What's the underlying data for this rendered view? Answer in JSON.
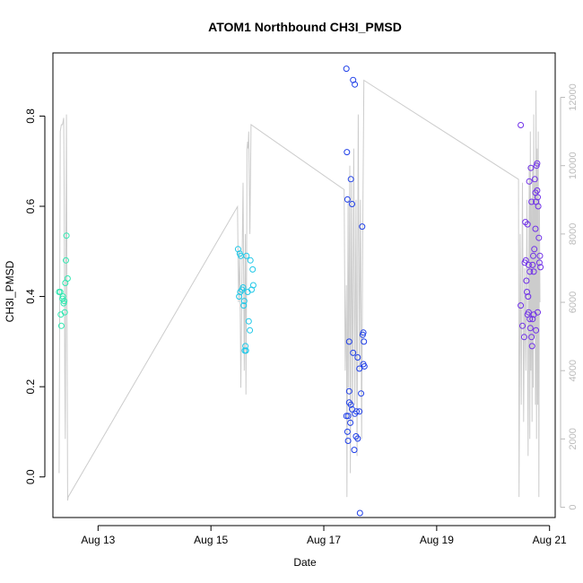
{
  "chart_data": {
    "type": "scatter",
    "title": "ATOM1 Northbound CH3I_PMSD",
    "xlabel": "Date",
    "ylabel": "CH3I_PMSD",
    "xlim": [
      12.2,
      21.1
    ],
    "ylim": [
      -0.09,
      0.94
    ],
    "x_ticks": [
      {
        "value": 13,
        "label": "Aug 13"
      },
      {
        "value": 15,
        "label": "Aug 15"
      },
      {
        "value": 17,
        "label": "Aug 17"
      },
      {
        "value": 19,
        "label": "Aug 19"
      },
      {
        "value": 21,
        "label": "Aug 21"
      }
    ],
    "y_ticks": [
      {
        "value": 0.0,
        "label": "0.0"
      },
      {
        "value": 0.2,
        "label": "0.2"
      },
      {
        "value": 0.4,
        "label": "0.4"
      },
      {
        "value": 0.6,
        "label": "0.6"
      },
      {
        "value": 0.8,
        "label": "0.8"
      }
    ],
    "y2lim": [
      -300,
      13300
    ],
    "y2_ticks": [
      {
        "value": 0,
        "label": "0"
      },
      {
        "value": 2000,
        "label": "2000"
      },
      {
        "value": 4000,
        "label": "4000"
      },
      {
        "value": 6000,
        "label": "6000"
      },
      {
        "value": 8000,
        "label": "8000"
      },
      {
        "value": 10000,
        "label": "10000"
      },
      {
        "value": 12000,
        "label": "12000"
      }
    ],
    "grid": false,
    "series": [
      {
        "color": "#2ee8b0",
        "points": [
          [
            12.31,
            0.41
          ],
          [
            12.33,
            0.41
          ],
          [
            12.34,
            0.36
          ],
          [
            12.35,
            0.335
          ],
          [
            12.37,
            0.395
          ],
          [
            12.38,
            0.4
          ],
          [
            12.39,
            0.385
          ],
          [
            12.4,
            0.39
          ],
          [
            12.41,
            0.365
          ],
          [
            12.42,
            0.43
          ],
          [
            12.43,
            0.48
          ],
          [
            12.44,
            0.535
          ],
          [
            12.46,
            0.44
          ]
        ]
      },
      {
        "color": "#1fc8e8",
        "points": [
          [
            15.48,
            0.505
          ],
          [
            15.5,
            0.4
          ],
          [
            15.51,
            0.495
          ],
          [
            15.52,
            0.41
          ],
          [
            15.53,
            0.49
          ],
          [
            15.55,
            0.415
          ],
          [
            15.57,
            0.42
          ],
          [
            15.58,
            0.38
          ],
          [
            15.59,
            0.39
          ],
          [
            15.6,
            0.28
          ],
          [
            15.61,
            0.29
          ],
          [
            15.62,
            0.28
          ],
          [
            15.63,
            0.49
          ],
          [
            15.65,
            0.41
          ],
          [
            15.67,
            0.345
          ],
          [
            15.69,
            0.325
          ],
          [
            15.7,
            0.48
          ],
          [
            15.72,
            0.415
          ],
          [
            15.74,
            0.46
          ],
          [
            15.75,
            0.425
          ]
        ]
      },
      {
        "color": "#2040e8",
        "points": [
          [
            17.4,
            0.905
          ],
          [
            17.52,
            0.88
          ],
          [
            17.55,
            0.87
          ],
          [
            17.41,
            0.72
          ],
          [
            17.42,
            0.615
          ],
          [
            17.48,
            0.66
          ],
          [
            17.5,
            0.605
          ],
          [
            17.68,
            0.555
          ],
          [
            17.45,
            0.3
          ],
          [
            17.69,
            0.315
          ],
          [
            17.7,
            0.32
          ],
          [
            17.71,
            0.3
          ],
          [
            17.52,
            0.275
          ],
          [
            17.6,
            0.265
          ],
          [
            17.7,
            0.25
          ],
          [
            17.72,
            0.245
          ],
          [
            17.63,
            0.24
          ],
          [
            17.45,
            0.19
          ],
          [
            17.66,
            0.185
          ],
          [
            17.45,
            0.165
          ],
          [
            17.48,
            0.16
          ],
          [
            17.4,
            0.135
          ],
          [
            17.43,
            0.135
          ],
          [
            17.5,
            0.15
          ],
          [
            17.55,
            0.14
          ],
          [
            17.58,
            0.145
          ],
          [
            17.63,
            0.145
          ],
          [
            17.47,
            0.12
          ],
          [
            17.42,
            0.1
          ],
          [
            17.57,
            0.09
          ],
          [
            17.6,
            0.085
          ],
          [
            17.43,
            0.08
          ],
          [
            17.54,
            0.06
          ],
          [
            17.64,
            -0.08
          ]
        ]
      },
      {
        "color": "#7030e8",
        "points": [
          [
            20.49,
            0.78
          ],
          [
            20.49,
            0.38
          ],
          [
            20.52,
            0.335
          ],
          [
            20.55,
            0.31
          ],
          [
            20.56,
            0.475
          ],
          [
            20.57,
            0.565
          ],
          [
            20.58,
            0.48
          ],
          [
            20.59,
            0.435
          ],
          [
            20.6,
            0.41
          ],
          [
            20.61,
            0.56
          ],
          [
            20.61,
            0.36
          ],
          [
            20.62,
            0.4
          ],
          [
            20.63,
            0.47
          ],
          [
            20.63,
            0.365
          ],
          [
            20.64,
            0.655
          ],
          [
            20.65,
            0.35
          ],
          [
            20.65,
            0.455
          ],
          [
            20.66,
            0.33
          ],
          [
            20.67,
            0.685
          ],
          [
            20.68,
            0.61
          ],
          [
            20.68,
            0.31
          ],
          [
            20.69,
            0.29
          ],
          [
            20.7,
            0.47
          ],
          [
            20.7,
            0.35
          ],
          [
            20.71,
            0.49
          ],
          [
            20.72,
            0.455
          ],
          [
            20.72,
            0.36
          ],
          [
            20.73,
            0.505
          ],
          [
            20.74,
            0.66
          ],
          [
            20.75,
            0.63
          ],
          [
            20.75,
            0.55
          ],
          [
            20.76,
            0.61
          ],
          [
            20.76,
            0.325
          ],
          [
            20.77,
            0.69
          ],
          [
            20.78,
            0.695
          ],
          [
            20.78,
            0.635
          ],
          [
            20.79,
            0.62
          ],
          [
            20.79,
            0.365
          ],
          [
            20.8,
            0.6
          ],
          [
            20.81,
            0.53
          ],
          [
            20.82,
            0.475
          ],
          [
            20.83,
            0.49
          ],
          [
            20.84,
            0.465
          ]
        ]
      }
    ],
    "right_axis_line": {
      "color": "#cccccc",
      "points": [
        [
          12.31,
          1000
        ],
        [
          12.33,
          11000
        ],
        [
          12.35,
          11200
        ],
        [
          12.37,
          11200
        ],
        [
          12.39,
          11400
        ],
        [
          12.4,
          9000
        ],
        [
          12.41,
          4000
        ],
        [
          12.42,
          2000
        ],
        [
          12.43,
          8000
        ],
        [
          12.44,
          11500
        ],
        [
          12.45,
          6000
        ],
        [
          12.46,
          200
        ],
        [
          12.47,
          300
        ],
        [
          15.47,
          8800
        ],
        [
          15.49,
          6000
        ],
        [
          15.51,
          7500
        ],
        [
          15.53,
          3500
        ],
        [
          15.55,
          7000
        ],
        [
          15.57,
          9500
        ],
        [
          15.59,
          4000
        ],
        [
          15.61,
          8000
        ],
        [
          15.62,
          3300
        ],
        [
          15.63,
          6000
        ],
        [
          15.64,
          10500
        ],
        [
          15.65,
          10700
        ],
        [
          15.66,
          10500
        ],
        [
          15.67,
          11000
        ],
        [
          15.69,
          8000
        ],
        [
          15.71,
          11200
        ],
        [
          17.36,
          9300
        ],
        [
          17.38,
          4000
        ],
        [
          17.4,
          6500
        ],
        [
          17.41,
          300
        ],
        [
          17.43,
          9000
        ],
        [
          17.44,
          3500
        ],
        [
          17.46,
          10000
        ],
        [
          17.47,
          1000
        ],
        [
          17.49,
          9500
        ],
        [
          17.51,
          2500
        ],
        [
          17.53,
          10500
        ],
        [
          17.55,
          3000
        ],
        [
          17.57,
          9000
        ],
        [
          17.59,
          1500
        ],
        [
          17.61,
          11500
        ],
        [
          17.63,
          4000
        ],
        [
          17.65,
          9000
        ],
        [
          17.67,
          2000
        ],
        [
          17.69,
          8000
        ],
        [
          17.71,
          12500
        ],
        [
          20.45,
          9600
        ],
        [
          20.46,
          300
        ],
        [
          20.48,
          8000
        ],
        [
          20.5,
          3000
        ],
        [
          20.52,
          9500
        ],
        [
          20.54,
          2500
        ],
        [
          20.56,
          7000
        ],
        [
          20.58,
          4000
        ],
        [
          20.6,
          9000
        ],
        [
          20.62,
          1500
        ],
        [
          20.64,
          10000
        ],
        [
          20.65,
          2000
        ],
        [
          20.66,
          11000
        ],
        [
          20.67,
          4000
        ],
        [
          20.68,
          9000
        ],
        [
          20.69,
          2500
        ],
        [
          20.7,
          10000
        ],
        [
          20.71,
          3500
        ],
        [
          20.72,
          11500
        ],
        [
          20.73,
          5000
        ],
        [
          20.74,
          9500
        ],
        [
          20.75,
          3000
        ],
        [
          20.76,
          12200
        ],
        [
          20.77,
          2000
        ],
        [
          20.78,
          10500
        ],
        [
          20.79,
          3000
        ],
        [
          20.8,
          11000
        ],
        [
          20.81,
          300
        ],
        [
          20.82,
          9000
        ],
        [
          20.83,
          6000
        ]
      ]
    }
  }
}
